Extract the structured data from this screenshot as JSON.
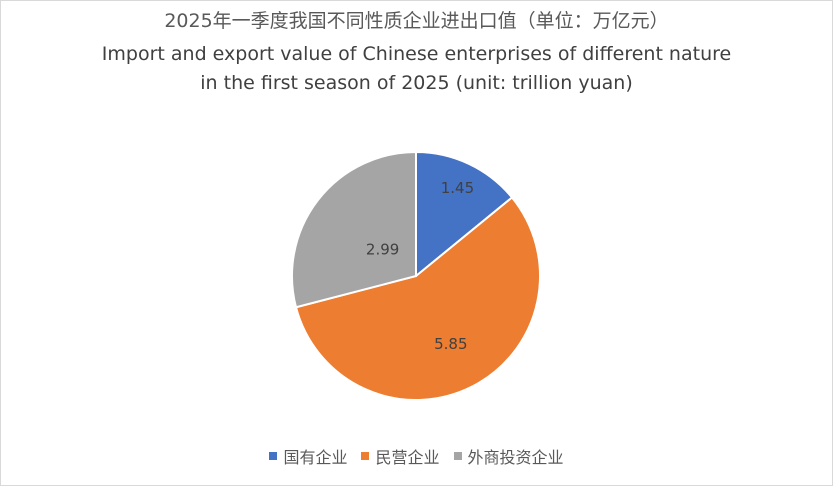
{
  "chart_data": {
    "type": "pie",
    "title_cn": "2025年一季度我国不同性质企业进出口值（单位：万亿元）",
    "title_en_line1": "Import and export value of Chinese enterprises of different nature",
    "title_en_line2": "in the first season of 2025 (unit: trillion yuan)",
    "categories": [
      "国有企业",
      "民营企业",
      "外商投资企业"
    ],
    "values": [
      1.45,
      5.85,
      2.99
    ],
    "data_labels": [
      "1.45",
      "5.85",
      "2.99"
    ],
    "colors": [
      "#4472C4",
      "#ED7D31",
      "#A5A5A5"
    ],
    "start_angle_deg": 0,
    "direction": "clockwise",
    "legend_position": "bottom"
  }
}
